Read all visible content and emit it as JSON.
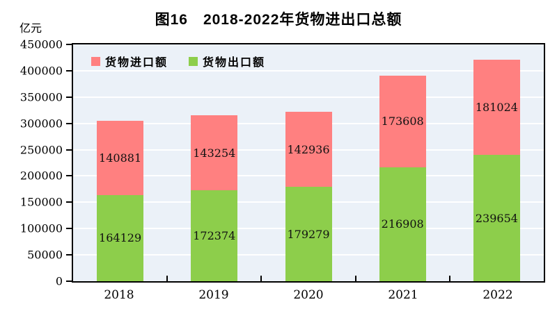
{
  "title": "图16　2018-2022年货物进出口总额",
  "unit_label": "亿元",
  "legend": {
    "items": [
      {
        "label": "货物进口额",
        "color": "#FF8080"
      },
      {
        "label": "货物出口额",
        "color": "#8DCE4B"
      }
    ]
  },
  "colors": {
    "import_bar": "#FF8080",
    "export_bar": "#8DCE4B",
    "plot_background": "#EBF1F8",
    "gridline": "#FFFFFF",
    "axis": "#000000"
  },
  "chart_data": {
    "type": "bar",
    "stacked": true,
    "title": "图16　2018-2022年货物进出口总额",
    "ylabel": "亿元",
    "categories": [
      "2018",
      "2019",
      "2020",
      "2021",
      "2022"
    ],
    "series": [
      {
        "name": "货物出口额",
        "color": "#8DCE4B",
        "values": [
          164129,
          172374,
          179279,
          216908,
          239654
        ]
      },
      {
        "name": "货物进口额",
        "color": "#FF8080",
        "values": [
          140881,
          143254,
          142936,
          173608,
          181024
        ]
      }
    ],
    "ylim": [
      0,
      450000
    ],
    "ytick_step": 50000,
    "ytick_labels": [
      "0",
      "50000",
      "100000",
      "150000",
      "200000",
      "250000",
      "300000",
      "350000",
      "400000",
      "450000"
    ],
    "grid": true,
    "grid_color": "#FFFFFF",
    "plot_bg": "#EBF1F8",
    "legend_position": "top-left-inside",
    "data_labels": "centered-in-segment"
  }
}
